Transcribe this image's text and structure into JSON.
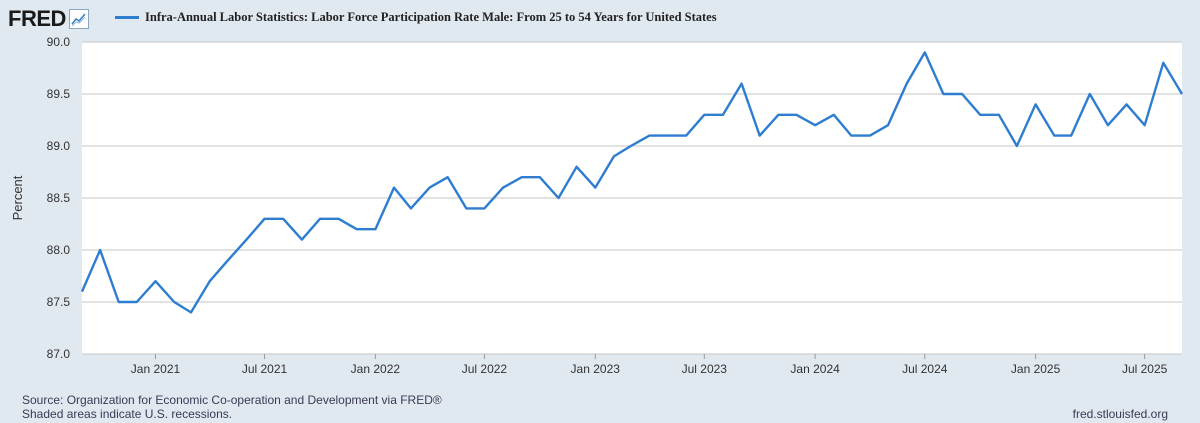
{
  "header": {
    "logo_text": "FRED",
    "logo_icon": "line-chart-icon"
  },
  "chart_data": {
    "type": "line",
    "title": "",
    "xlabel": "",
    "ylabel": "Percent",
    "ylim": [
      87.0,
      90.0
    ],
    "grid": true,
    "legend_placement": "top",
    "yticks": [
      "87.0",
      "87.5",
      "88.0",
      "88.5",
      "89.0",
      "89.5",
      "90.0"
    ],
    "xticks": [
      {
        "label": "Jan 2021",
        "date": "2021-01"
      },
      {
        "label": "Jul 2021",
        "date": "2021-07"
      },
      {
        "label": "Jan 2022",
        "date": "2022-01"
      },
      {
        "label": "Jul 2022",
        "date": "2022-07"
      },
      {
        "label": "Jan 2023",
        "date": "2023-01"
      },
      {
        "label": "Jul 2023",
        "date": "2023-07"
      },
      {
        "label": "Jan 2024",
        "date": "2024-01"
      },
      {
        "label": "Jul 2024",
        "date": "2024-07"
      },
      {
        "label": "Jan 2025",
        "date": "2025-01"
      },
      {
        "label": "Jul 2025",
        "date": "2025-07"
      }
    ],
    "colors": {
      "line": "#2e7dd1",
      "grid": "#c6c6c6",
      "plot_bg": "#ffffff"
    },
    "series": [
      {
        "name": "Infra-Annual Labor Statistics: Labor Force Participation Rate Male: From 25 to 54 Years for United States",
        "x": [
          "2020-09",
          "2020-10",
          "2020-11",
          "2020-12",
          "2021-01",
          "2021-02",
          "2021-03",
          "2021-04",
          "2021-05",
          "2021-06",
          "2021-07",
          "2021-08",
          "2021-09",
          "2021-10",
          "2021-11",
          "2021-12",
          "2022-01",
          "2022-02",
          "2022-03",
          "2022-04",
          "2022-05",
          "2022-06",
          "2022-07",
          "2022-08",
          "2022-09",
          "2022-10",
          "2022-11",
          "2022-12",
          "2023-01",
          "2023-02",
          "2023-03",
          "2023-04",
          "2023-05",
          "2023-06",
          "2023-07",
          "2023-08",
          "2023-09",
          "2023-10",
          "2023-11",
          "2023-12",
          "2024-01",
          "2024-02",
          "2024-03",
          "2024-04",
          "2024-05",
          "2024-06",
          "2024-07",
          "2024-08",
          "2024-09",
          "2024-10",
          "2024-11",
          "2024-12",
          "2025-01",
          "2025-02",
          "2025-03",
          "2025-04",
          "2025-05",
          "2025-06",
          "2025-07",
          "2025-08",
          "2025-09"
        ],
        "values": [
          87.6,
          88.0,
          87.5,
          87.5,
          87.7,
          87.5,
          87.4,
          87.7,
          87.9,
          88.1,
          88.3,
          88.3,
          88.1,
          88.3,
          88.3,
          88.2,
          88.2,
          88.6,
          88.4,
          88.6,
          88.7,
          88.4,
          88.4,
          88.6,
          88.7,
          88.7,
          88.5,
          88.8,
          88.6,
          88.9,
          89.0,
          89.1,
          89.1,
          89.1,
          89.3,
          89.3,
          89.6,
          89.1,
          89.3,
          89.3,
          89.2,
          89.3,
          89.1,
          89.1,
          89.2,
          89.6,
          89.9,
          89.5,
          89.5,
          89.3,
          89.3,
          89.0,
          89.4,
          89.1,
          89.1,
          89.5,
          89.2,
          89.4,
          89.2,
          89.8,
          89.5
        ]
      }
    ]
  },
  "footer": {
    "source": "Source: Organization for Economic Co-operation and Development via FRED®",
    "recessions": "Shaded areas indicate U.S. recessions.",
    "site": "fred.stlouisfed.org"
  }
}
